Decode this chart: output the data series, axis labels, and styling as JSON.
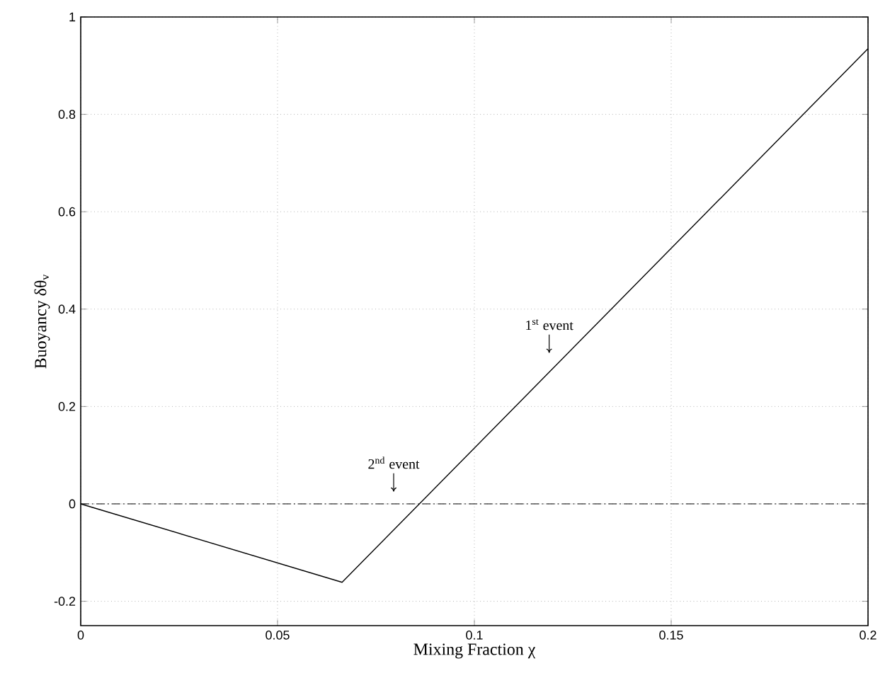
{
  "chart_data": {
    "type": "line",
    "xlabel": "Mixing Fraction  χ",
    "ylabel": "Buoyancy  δθ$_{v}$",
    "x": [
      0,
      0.0664,
      0.2
    ],
    "series": [
      {
        "color": "#000000",
        "values": [
          0,
          -0.161,
          0.935
        ]
      }
    ],
    "xlim": [
      0,
      0.2
    ],
    "ylim": [
      -0.25,
      1
    ],
    "xticks": [
      0,
      0.05,
      0.1,
      0.15,
      0.2
    ],
    "yticks": [
      -0.2,
      0,
      0.2,
      0.4,
      0.6,
      0.8,
      1
    ],
    "grid": true,
    "line_style": "solid",
    "marker": "none",
    "ref_lines": [
      {
        "axis": "y",
        "value": 0,
        "color": "#000000",
        "line_style": "dashdot"
      }
    ],
    "annotations": [
      {
        "text": "1$^{st}$ event",
        "x": 0.119,
        "y": 0.31
      },
      {
        "text": "2$^{nd}$ event",
        "x": 0.0795,
        "y": 0.025
      }
    ]
  }
}
